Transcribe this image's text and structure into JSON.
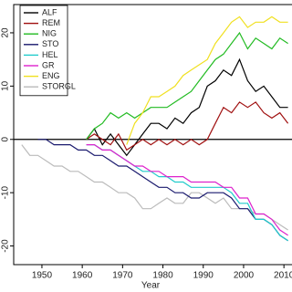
{
  "chart_data": {
    "type": "line",
    "x_label": "Year",
    "x": [
      1945,
      1947,
      1949,
      1951,
      1953,
      1955,
      1957,
      1959,
      1961,
      1963,
      1965,
      1967,
      1969,
      1971,
      1973,
      1975,
      1977,
      1979,
      1981,
      1983,
      1985,
      1987,
      1989,
      1991,
      1993,
      1995,
      1997,
      1999,
      2001,
      2003,
      2005,
      2007,
      2009,
      2011
    ],
    "series": [
      {
        "name": "ALF",
        "color": "#000000",
        "values": [
          null,
          null,
          null,
          null,
          null,
          null,
          null,
          null,
          0,
          2,
          -1,
          1,
          -1,
          -3,
          -1,
          1,
          3,
          3,
          2,
          4,
          3,
          5,
          6,
          10,
          11,
          13,
          12,
          15,
          11,
          9,
          10,
          8,
          6,
          6
        ]
      },
      {
        "name": "REM",
        "color": "#a01010",
        "values": [
          null,
          null,
          null,
          null,
          null,
          null,
          null,
          null,
          0,
          1,
          0,
          -1,
          1,
          -2,
          -1,
          0,
          -1,
          0,
          -1,
          0,
          -1,
          0,
          -1,
          0,
          3,
          6,
          5,
          7,
          6,
          7,
          5,
          4,
          5,
          3
        ]
      },
      {
        "name": "NIG",
        "color": "#22bb22",
        "values": [
          null,
          null,
          null,
          null,
          null,
          null,
          null,
          null,
          0,
          2,
          3,
          5,
          4,
          5,
          4,
          5,
          6,
          6,
          6,
          7,
          8,
          9,
          11,
          13,
          15,
          16,
          18,
          20,
          17,
          19,
          18,
          17,
          19,
          18
        ]
      },
      {
        "name": "STO",
        "color": "#1a1a6e",
        "values": [
          null,
          null,
          0,
          0,
          -1,
          -1,
          -1,
          -2,
          -2,
          -3,
          -3,
          -4,
          -5,
          -5,
          -6,
          -7,
          -8,
          -9,
          -9,
          -10,
          -10,
          -11,
          -11,
          -10,
          -10,
          -10,
          -11,
          -13,
          -13,
          -15,
          -15,
          -16,
          -18,
          -19
        ]
      },
      {
        "name": "HEL",
        "color": "#22cccc",
        "values": [
          null,
          null,
          null,
          null,
          null,
          null,
          null,
          null,
          -1,
          -1,
          -2,
          -2,
          -3,
          -4,
          -5,
          -6,
          -6,
          -7,
          -7,
          -8,
          -8,
          -9,
          -9,
          -9,
          -9,
          -9,
          -10,
          -12,
          -12,
          -15,
          -15,
          -16,
          -18,
          -19
        ]
      },
      {
        "name": "GR",
        "color": "#dd22cc",
        "values": [
          null,
          null,
          null,
          null,
          null,
          null,
          null,
          null,
          -1,
          -1,
          -2,
          -2,
          -3,
          -4,
          -5,
          -5,
          -6,
          -6,
          -7,
          -7,
          -7,
          -8,
          -8,
          -8,
          -8,
          -9,
          -9,
          -11,
          -11,
          -14,
          -14,
          -15,
          -17,
          -18
        ]
      },
      {
        "name": "ENG",
        "color": "#f0e020",
        "values": [
          null,
          null,
          null,
          null,
          null,
          null,
          null,
          null,
          null,
          null,
          null,
          null,
          null,
          -1,
          3,
          5,
          8,
          8,
          9,
          10,
          12,
          13,
          14,
          15,
          18,
          20,
          22,
          23,
          21,
          22,
          22,
          23,
          22,
          22
        ]
      },
      {
        "name": "STORGL",
        "color": "#bbbbbb",
        "values": [
          -1,
          -3,
          -3,
          -4,
          -5,
          -5,
          -6,
          -6,
          -7,
          -8,
          -8,
          -9,
          -10,
          -10,
          -11,
          -13,
          -13,
          -12,
          -11,
          -12,
          -12,
          -10,
          -10,
          -11,
          -12,
          -11,
          -13,
          -13,
          -13,
          -14,
          -14,
          -15,
          -16,
          -17
        ]
      }
    ],
    "xlim": [
      1943,
      2012
    ],
    "xticks": [
      1950,
      1960,
      1970,
      1980,
      1990,
      2000,
      2010
    ],
    "ylim": [
      -23.5,
      25.3
    ],
    "yticks": [
      -20,
      -10,
      0,
      10,
      20
    ],
    "reference_line": 0,
    "legend": "top-left"
  }
}
